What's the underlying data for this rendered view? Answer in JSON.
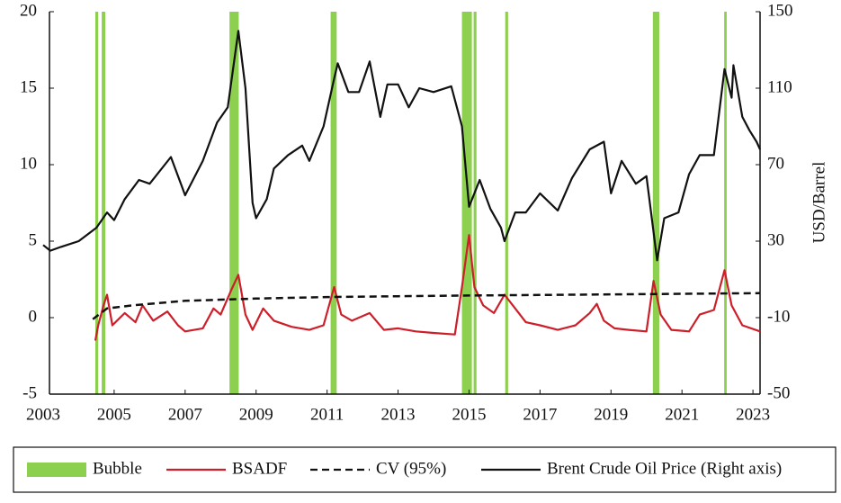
{
  "chart_data": {
    "type": "line",
    "xlim": [
      2003,
      2023.2
    ],
    "xticks": [
      2003,
      2005,
      2007,
      2009,
      2011,
      2013,
      2015,
      2017,
      2019,
      2021,
      2023
    ],
    "ylim": [
      -5,
      20
    ],
    "yticks": [
      -5,
      0,
      5,
      10,
      15,
      20
    ],
    "y2lim": [
      -50,
      150
    ],
    "y2ticks": [
      -50,
      -10,
      30,
      70,
      110,
      150
    ],
    "y2label": "USD/Barrel",
    "legend": "bottom",
    "series": [
      {
        "name": "Bubble",
        "color": "#8dcf4f",
        "periods": [
          [
            2004.47,
            2004.55
          ],
          [
            2004.65,
            2004.75
          ],
          [
            2008.25,
            2008.51
          ],
          [
            2011.1,
            2011.27
          ],
          [
            2014.8,
            2015.08
          ],
          [
            2015.13,
            2015.21
          ],
          [
            2016.02,
            2016.1
          ],
          [
            2020.18,
            2020.36
          ],
          [
            2022.19,
            2022.26
          ]
        ]
      },
      {
        "name": "BSADF",
        "color": "#cc1f2a",
        "dash": false,
        "x": [
          2004.47,
          2004.55,
          2004.7,
          2004.8,
          2004.95,
          2005.3,
          2005.6,
          2005.8,
          2006.1,
          2006.5,
          2006.8,
          2007.0,
          2007.5,
          2007.8,
          2008.0,
          2008.3,
          2008.5,
          2008.7,
          2008.9,
          2009.2,
          2009.5,
          2010.0,
          2010.5,
          2010.9,
          2011.2,
          2011.4,
          2011.7,
          2012.2,
          2012.6,
          2013.0,
          2013.5,
          2014.0,
          2014.6,
          2014.8,
          2015.0,
          2015.15,
          2015.4,
          2015.7,
          2016.0,
          2016.3,
          2016.6,
          2017.0,
          2017.5,
          2018.0,
          2018.4,
          2018.6,
          2018.8,
          2019.1,
          2019.5,
          2020.0,
          2020.2,
          2020.4,
          2020.7,
          2021.2,
          2021.5,
          2021.9,
          2022.2,
          2022.4,
          2022.7,
          2023.2
        ],
        "values": [
          -1.5,
          -0.5,
          0.8,
          1.5,
          -0.5,
          0.3,
          -0.3,
          0.8,
          -0.2,
          0.4,
          -0.5,
          -0.9,
          -0.7,
          0.6,
          0.2,
          1.8,
          2.8,
          0.2,
          -0.8,
          0.6,
          -0.2,
          -0.6,
          -0.8,
          -0.5,
          2.0,
          0.2,
          -0.2,
          0.3,
          -0.8,
          -0.7,
          -0.9,
          -1.0,
          -1.1,
          2.0,
          5.4,
          2.0,
          0.8,
          0.3,
          1.5,
          0.6,
          -0.3,
          -0.5,
          -0.8,
          -0.5,
          0.3,
          0.9,
          -0.2,
          -0.7,
          -0.8,
          -0.9,
          2.4,
          0.2,
          -0.8,
          -0.9,
          0.2,
          0.5,
          3.1,
          0.8,
          -0.5,
          -0.9
        ]
      },
      {
        "name": "CV (95%)",
        "color": "#111111",
        "dash": true,
        "x": [
          2004.4,
          2004.8,
          2005.5,
          2007,
          2009,
          2011,
          2013,
          2015,
          2018,
          2023.2
        ],
        "values": [
          -0.1,
          0.6,
          0.8,
          1.1,
          1.25,
          1.35,
          1.4,
          1.45,
          1.5,
          1.6
        ]
      },
      {
        "name": "Brent Crude Oil Price (Right axis)",
        "color": "#111111",
        "dash": false,
        "axis": "y2",
        "x": [
          2003.0,
          2003.2,
          2003.5,
          2004.0,
          2004.5,
          2004.8,
          2005.0,
          2005.3,
          2005.7,
          2006.0,
          2006.6,
          2006.9,
          2007.0,
          2007.5,
          2007.9,
          2008.2,
          2008.5,
          2008.7,
          2008.9,
          2009.0,
          2009.3,
          2009.5,
          2009.9,
          2010.3,
          2010.5,
          2010.9,
          2011.2,
          2011.3,
          2011.6,
          2011.9,
          2012.2,
          2012.5,
          2012.7,
          2013.0,
          2013.3,
          2013.6,
          2014.0,
          2014.5,
          2014.8,
          2015.0,
          2015.3,
          2015.6,
          2015.9,
          2016.0,
          2016.3,
          2016.6,
          2017.0,
          2017.5,
          2017.9,
          2018.4,
          2018.8,
          2019.0,
          2019.3,
          2019.7,
          2020.0,
          2020.3,
          2020.5,
          2020.9,
          2021.2,
          2021.5,
          2021.9,
          2022.2,
          2022.4,
          2022.45,
          2022.7,
          2022.9,
          2023.1,
          2023.2
        ],
        "values": [
          28,
          25,
          27,
          30,
          37,
          45,
          41,
          52,
          62,
          60,
          74,
          59,
          54,
          72,
          92,
          100,
          140,
          110,
          50,
          42,
          52,
          68,
          75,
          80,
          72,
          90,
          115,
          123,
          108,
          108,
          124,
          95,
          112,
          112,
          100,
          110,
          108,
          111,
          90,
          48,
          62,
          47,
          37,
          30,
          45,
          45,
          55,
          46,
          63,
          78,
          82,
          55,
          72,
          60,
          64,
          20,
          42,
          45,
          65,
          75,
          75,
          120,
          105,
          122,
          95,
          88,
          82,
          78
        ]
      }
    ]
  }
}
